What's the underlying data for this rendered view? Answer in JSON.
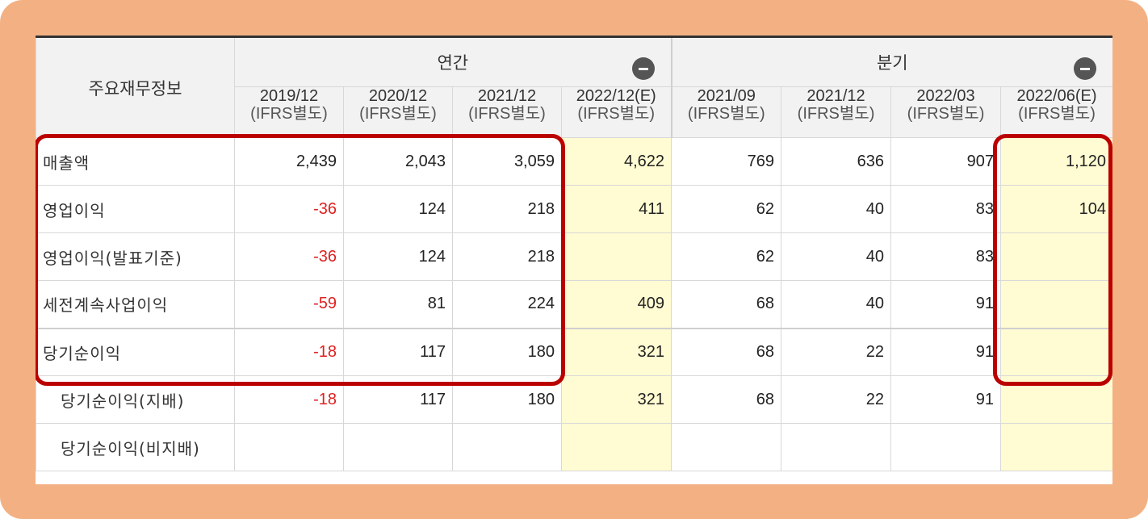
{
  "table": {
    "corner_label": "주요재무정보",
    "groups": [
      {
        "label": "연간",
        "toggle_icon": "collapse-minus-icon"
      },
      {
        "label": "분기",
        "toggle_icon": "collapse-minus-icon"
      }
    ],
    "periods": [
      {
        "date": "2019/12",
        "basis": "(IFRS별도)"
      },
      {
        "date": "2020/12",
        "basis": "(IFRS별도)"
      },
      {
        "date": "2021/12",
        "basis": "(IFRS별도)"
      },
      {
        "date": "2022/12(E)",
        "basis": "(IFRS별도)"
      },
      {
        "date": "2021/09",
        "basis": "(IFRS별도)"
      },
      {
        "date": "2021/12",
        "basis": "(IFRS별도)"
      },
      {
        "date": "2022/03",
        "basis": "(IFRS별도)"
      },
      {
        "date": "2022/06(E)",
        "basis": "(IFRS별도)"
      }
    ],
    "rows": [
      {
        "label": "매출액",
        "values": [
          "2,439",
          "2,043",
          "3,059",
          "4,622",
          "769",
          "636",
          "907",
          "1,120"
        ]
      },
      {
        "label": "영업이익",
        "values": [
          "-36",
          "124",
          "218",
          "411",
          "62",
          "40",
          "83",
          "104"
        ]
      },
      {
        "label": "영업이익(발표기준)",
        "values": [
          "-36",
          "124",
          "218",
          "",
          "62",
          "40",
          "83",
          ""
        ]
      },
      {
        "label": "세전계속사업이익",
        "values": [
          "-59",
          "81",
          "224",
          "409",
          "68",
          "40",
          "91",
          ""
        ]
      },
      {
        "label": "당기순이익",
        "values": [
          "-18",
          "117",
          "180",
          "321",
          "68",
          "22",
          "91",
          ""
        ]
      },
      {
        "label": "당기순이익(지배)",
        "values": [
          "-18",
          "117",
          "180",
          "321",
          "68",
          "22",
          "91",
          ""
        ]
      },
      {
        "label": "당기순이익(비지배)",
        "values": [
          "",
          "",
          "",
          "",
          "",
          "",
          "",
          ""
        ]
      }
    ]
  },
  "colors": {
    "frame_bg": "#f3b183",
    "estimate_bg": "#fffbd2",
    "negative_text": "#e02020",
    "highlight_border": "#bb0000"
  }
}
